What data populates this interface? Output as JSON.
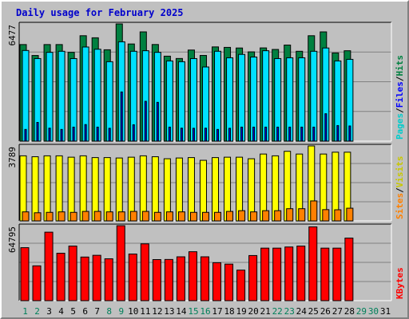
{
  "title": "Daily usage for February 2025",
  "chart_data": [
    {
      "type": "bar",
      "panel": "hits-files-pages",
      "ymax_label": "6477",
      "ylim": [
        0,
        6477
      ],
      "legend": [
        "Pages",
        "Files",
        "Hits"
      ],
      "legend_colors": [
        "#00cccc",
        "#0000ff",
        "#008040"
      ],
      "categories": [
        "1",
        "2",
        "3",
        "4",
        "5",
        "6",
        "7",
        "8",
        "9",
        "10",
        "11",
        "12",
        "13",
        "14",
        "15",
        "16",
        "17",
        "18",
        "19",
        "20",
        "21",
        "22",
        "23",
        "24",
        "25",
        "26",
        "27",
        "28",
        "29",
        "30",
        "31"
      ],
      "series": [
        {
          "name": "Hits",
          "color": "#008040",
          "values": [
            5337,
            4733,
            5337,
            5337,
            4906,
            5825,
            5711,
            5049,
            6477,
            5369,
            6037,
            5340,
            4696,
            4567,
            5034,
            4735,
            5207,
            5181,
            5147,
            4933,
            5152,
            5067,
            5310,
            4966,
            5825,
            6037,
            4874,
            4995,
            null,
            null,
            null
          ]
        },
        {
          "name": "Files",
          "color": "#00e0ff",
          "values": [
            5009,
            4562,
            4906,
            4966,
            4562,
            5201,
            5078,
            4390,
            5490,
            4966,
            4996,
            4906,
            4433,
            4390,
            4562,
            4098,
            4966,
            4606,
            4793,
            4648,
            4996,
            4562,
            4606,
            4606,
            4966,
            5147,
            4433,
            4520,
            null,
            null,
            null
          ]
        },
        {
          "name": "Pages",
          "color": "#0000ff",
          "values": [
            647,
            1035,
            719,
            647,
            776,
            917,
            776,
            712,
            2719,
            907,
            2201,
            2144,
            776,
            719,
            712,
            719,
            647,
            712,
            776,
            776,
            776,
            776,
            776,
            776,
            776,
            1515,
            862,
            839,
            null,
            null,
            null
          ]
        }
      ],
      "weekend_days": [
        "1",
        "2",
        "8",
        "9",
        "15",
        "16",
        "22",
        "23",
        "29",
        "30"
      ]
    },
    {
      "type": "bar",
      "panel": "visits-sites",
      "ymax_label": "3789",
      "ylim": [
        0,
        3789
      ],
      "legend": [
        "Sites",
        "Visits"
      ],
      "legend_colors": [
        "#ff8000",
        "#ffff00"
      ],
      "series": [
        {
          "name": "Visits",
          "color": "#ffff00",
          "values": [
            3289,
            3243,
            3289,
            3289,
            3220,
            3289,
            3200,
            3200,
            3180,
            3220,
            3289,
            3243,
            3142,
            3180,
            3200,
            3062,
            3200,
            3220,
            3220,
            3142,
            3380,
            3289,
            3518,
            3380,
            3789,
            3380,
            3473,
            3473,
            null,
            null,
            null
          ]
        },
        {
          "name": "Sites",
          "color": "#ff8000",
          "values": [
            457,
            412,
            433,
            457,
            433,
            480,
            480,
            457,
            457,
            480,
            480,
            433,
            457,
            457,
            433,
            433,
            433,
            480,
            517,
            457,
            517,
            517,
            617,
            617,
            1010,
            570,
            563,
            642,
            null,
            null,
            null
          ]
        }
      ]
    },
    {
      "type": "bar",
      "panel": "kbytes",
      "ymax_label": "64795",
      "ylim": [
        0,
        64795
      ],
      "legend": [
        "KBytes"
      ],
      "legend_colors": [
        "#ff0000"
      ],
      "series": [
        {
          "name": "KBytes",
          "color": "#ff0000",
          "values": [
            45800,
            30100,
            59200,
            41000,
            47200,
            37700,
            39200,
            36200,
            64795,
            40300,
            49100,
            35500,
            35600,
            37900,
            42300,
            37900,
            32800,
            31600,
            26400,
            39000,
            45400,
            45400,
            46400,
            47200,
            63800,
            45400,
            45400,
            54100,
            null,
            null,
            null
          ]
        }
      ]
    }
  ]
}
